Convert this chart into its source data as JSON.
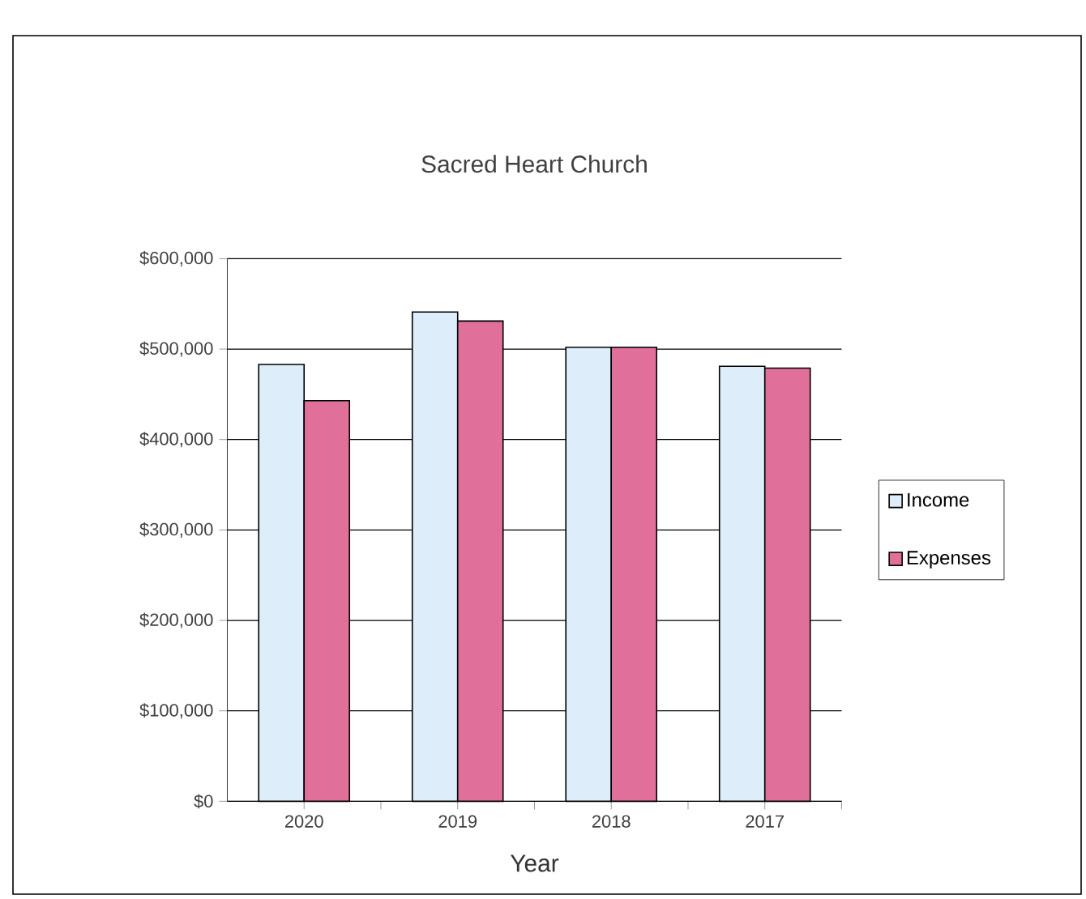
{
  "chart_data": {
    "type": "bar",
    "title": "Sacred Heart Church",
    "xlabel": "Year",
    "categories": [
      "2020",
      "2019",
      "2018",
      "2017"
    ],
    "series": [
      {
        "name": "Income",
        "color": "#ddeefa",
        "values": [
          483000,
          541000,
          502000,
          481000
        ]
      },
      {
        "name": "Expenses",
        "color": "#e0709a",
        "values": [
          443000,
          531000,
          502000,
          479000
        ]
      }
    ],
    "ylim": [
      0,
      600000
    ],
    "yticks": [
      {
        "value": 0,
        "label": "$0"
      },
      {
        "value": 100000,
        "label": "$100,000"
      },
      {
        "value": 200000,
        "label": "$200,000"
      },
      {
        "value": 300000,
        "label": "$300,000"
      },
      {
        "value": 400000,
        "label": "$400,000"
      },
      {
        "value": 500000,
        "label": "$500,000"
      },
      {
        "value": 600000,
        "label": "$600,000"
      }
    ],
    "grid": "y",
    "legend": "right"
  }
}
